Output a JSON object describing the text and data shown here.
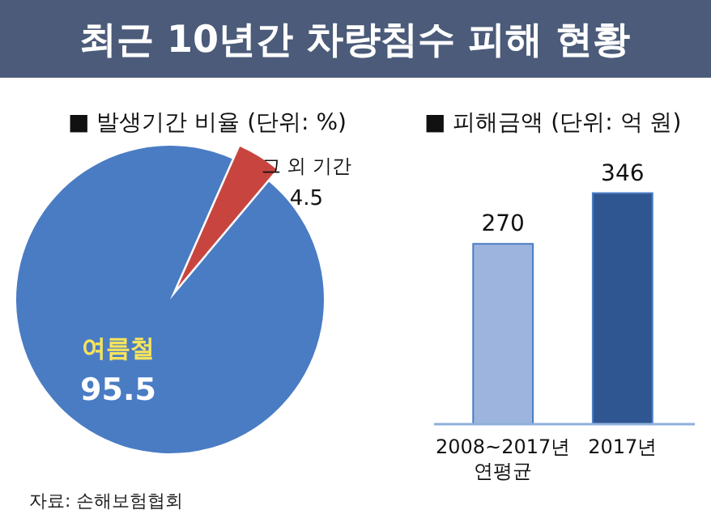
{
  "chart_data": [
    {
      "type": "pie",
      "title": "최근 10년간 차량침수 피해 현황",
      "subtitle": "■ 발생기간 비율 (단위: %)",
      "categories": [
        "여름철",
        "그 외 기간"
      ],
      "values": [
        95.5,
        4.5
      ],
      "colors": [
        "#4a7cc4",
        "#c8453f"
      ],
      "data_labels": true,
      "annotations": [
        "자료: 손해보험협회"
      ]
    },
    {
      "type": "bar",
      "title": "■ 피해금액 (단위: 억 원)",
      "categories": [
        "2008~2017년 연평균",
        "2017년"
      ],
      "values": [
        270,
        346
      ],
      "colors": [
        "#9db5de",
        "#2f5690"
      ],
      "data_labels": true
    }
  ]
}
